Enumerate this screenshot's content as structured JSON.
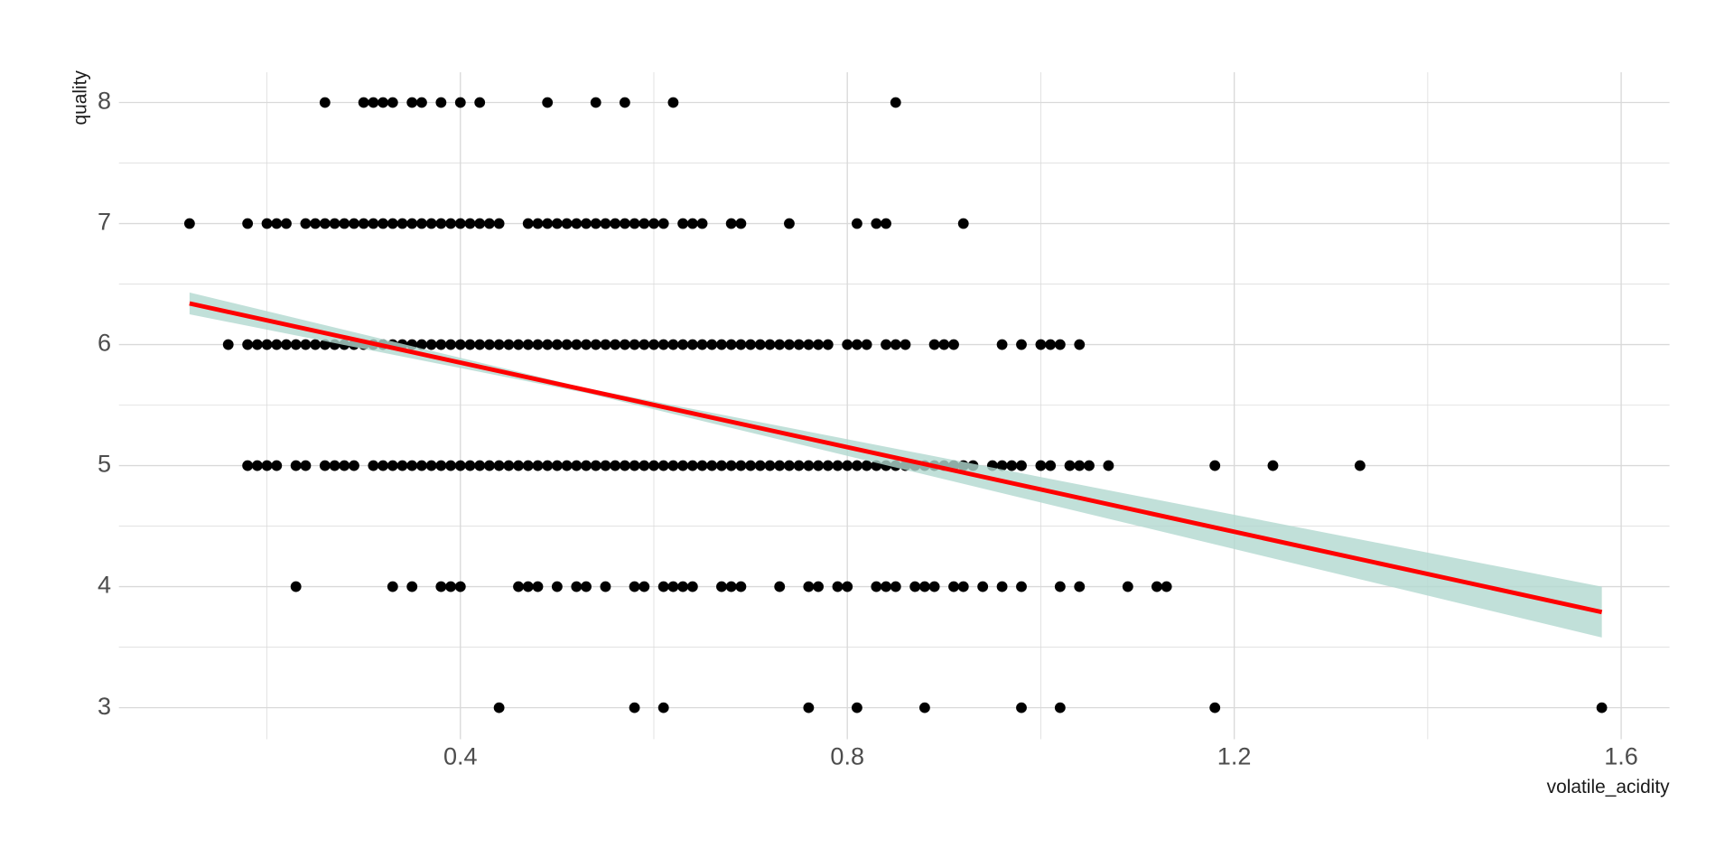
{
  "chart_data": {
    "type": "scatter",
    "x_label": "volatile_acidity",
    "y_label": "quality",
    "xlim": [
      0.047,
      1.65
    ],
    "ylim": [
      2.74,
      8.25
    ],
    "xticks": [
      0.4,
      0.8,
      1.2,
      1.6
    ],
    "yticks": [
      3,
      4,
      5,
      6,
      7,
      8
    ],
    "x_minor_grid": [
      0.2,
      0.6,
      1.0,
      1.4
    ],
    "y_minor_grid": [
      3.5,
      4.5,
      5.5,
      6.5,
      7.5
    ],
    "grid": true,
    "grid_color": "#d9d9d9",
    "point_color": "#000000",
    "points": [
      [
        0.26,
        8
      ],
      [
        0.3,
        8
      ],
      [
        0.31,
        8
      ],
      [
        0.32,
        8
      ],
      [
        0.33,
        8
      ],
      [
        0.35,
        8
      ],
      [
        0.36,
        8
      ],
      [
        0.38,
        8
      ],
      [
        0.4,
        8
      ],
      [
        0.42,
        8
      ],
      [
        0.49,
        8
      ],
      [
        0.54,
        8
      ],
      [
        0.57,
        8
      ],
      [
        0.62,
        8
      ],
      [
        0.85,
        8
      ],
      [
        0.12,
        7
      ],
      [
        0.18,
        7
      ],
      [
        0.2,
        7
      ],
      [
        0.21,
        7
      ],
      [
        0.22,
        7
      ],
      [
        0.24,
        7
      ],
      [
        0.25,
        7
      ],
      [
        0.26,
        7
      ],
      [
        0.27,
        7
      ],
      [
        0.28,
        7
      ],
      [
        0.29,
        7
      ],
      [
        0.3,
        7
      ],
      [
        0.31,
        7
      ],
      [
        0.32,
        7
      ],
      [
        0.33,
        7
      ],
      [
        0.34,
        7
      ],
      [
        0.35,
        7
      ],
      [
        0.36,
        7
      ],
      [
        0.37,
        7
      ],
      [
        0.38,
        7
      ],
      [
        0.39,
        7
      ],
      [
        0.4,
        7
      ],
      [
        0.41,
        7
      ],
      [
        0.42,
        7
      ],
      [
        0.43,
        7
      ],
      [
        0.44,
        7
      ],
      [
        0.47,
        7
      ],
      [
        0.48,
        7
      ],
      [
        0.49,
        7
      ],
      [
        0.5,
        7
      ],
      [
        0.51,
        7
      ],
      [
        0.52,
        7
      ],
      [
        0.53,
        7
      ],
      [
        0.54,
        7
      ],
      [
        0.55,
        7
      ],
      [
        0.56,
        7
      ],
      [
        0.57,
        7
      ],
      [
        0.58,
        7
      ],
      [
        0.59,
        7
      ],
      [
        0.6,
        7
      ],
      [
        0.61,
        7
      ],
      [
        0.63,
        7
      ],
      [
        0.64,
        7
      ],
      [
        0.65,
        7
      ],
      [
        0.68,
        7
      ],
      [
        0.69,
        7
      ],
      [
        0.74,
        7
      ],
      [
        0.81,
        7
      ],
      [
        0.83,
        7
      ],
      [
        0.84,
        7
      ],
      [
        0.92,
        7
      ],
      [
        0.16,
        6
      ],
      [
        0.18,
        6
      ],
      [
        0.19,
        6
      ],
      [
        0.2,
        6
      ],
      [
        0.21,
        6
      ],
      [
        0.22,
        6
      ],
      [
        0.23,
        6
      ],
      [
        0.24,
        6
      ],
      [
        0.25,
        6
      ],
      [
        0.26,
        6
      ],
      [
        0.27,
        6
      ],
      [
        0.28,
        6
      ],
      [
        0.29,
        6
      ],
      [
        0.3,
        6
      ],
      [
        0.31,
        6
      ],
      [
        0.32,
        6
      ],
      [
        0.33,
        6
      ],
      [
        0.34,
        6
      ],
      [
        0.35,
        6
      ],
      [
        0.36,
        6
      ],
      [
        0.37,
        6
      ],
      [
        0.38,
        6
      ],
      [
        0.39,
        6
      ],
      [
        0.4,
        6
      ],
      [
        0.41,
        6
      ],
      [
        0.42,
        6
      ],
      [
        0.43,
        6
      ],
      [
        0.44,
        6
      ],
      [
        0.45,
        6
      ],
      [
        0.46,
        6
      ],
      [
        0.47,
        6
      ],
      [
        0.48,
        6
      ],
      [
        0.49,
        6
      ],
      [
        0.5,
        6
      ],
      [
        0.51,
        6
      ],
      [
        0.52,
        6
      ],
      [
        0.53,
        6
      ],
      [
        0.54,
        6
      ],
      [
        0.55,
        6
      ],
      [
        0.56,
        6
      ],
      [
        0.57,
        6
      ],
      [
        0.58,
        6
      ],
      [
        0.59,
        6
      ],
      [
        0.6,
        6
      ],
      [
        0.61,
        6
      ],
      [
        0.62,
        6
      ],
      [
        0.63,
        6
      ],
      [
        0.64,
        6
      ],
      [
        0.65,
        6
      ],
      [
        0.66,
        6
      ],
      [
        0.67,
        6
      ],
      [
        0.68,
        6
      ],
      [
        0.69,
        6
      ],
      [
        0.7,
        6
      ],
      [
        0.71,
        6
      ],
      [
        0.72,
        6
      ],
      [
        0.73,
        6
      ],
      [
        0.74,
        6
      ],
      [
        0.75,
        6
      ],
      [
        0.76,
        6
      ],
      [
        0.77,
        6
      ],
      [
        0.78,
        6
      ],
      [
        0.8,
        6
      ],
      [
        0.81,
        6
      ],
      [
        0.82,
        6
      ],
      [
        0.84,
        6
      ],
      [
        0.85,
        6
      ],
      [
        0.86,
        6
      ],
      [
        0.89,
        6
      ],
      [
        0.9,
        6
      ],
      [
        0.91,
        6
      ],
      [
        0.96,
        6
      ],
      [
        0.98,
        6
      ],
      [
        1.0,
        6
      ],
      [
        1.01,
        6
      ],
      [
        1.02,
        6
      ],
      [
        1.04,
        6
      ],
      [
        0.18,
        5
      ],
      [
        0.19,
        5
      ],
      [
        0.2,
        5
      ],
      [
        0.21,
        5
      ],
      [
        0.23,
        5
      ],
      [
        0.24,
        5
      ],
      [
        0.26,
        5
      ],
      [
        0.27,
        5
      ],
      [
        0.28,
        5
      ],
      [
        0.29,
        5
      ],
      [
        0.31,
        5
      ],
      [
        0.32,
        5
      ],
      [
        0.33,
        5
      ],
      [
        0.34,
        5
      ],
      [
        0.35,
        5
      ],
      [
        0.36,
        5
      ],
      [
        0.37,
        5
      ],
      [
        0.38,
        5
      ],
      [
        0.39,
        5
      ],
      [
        0.4,
        5
      ],
      [
        0.41,
        5
      ],
      [
        0.42,
        5
      ],
      [
        0.43,
        5
      ],
      [
        0.44,
        5
      ],
      [
        0.45,
        5
      ],
      [
        0.46,
        5
      ],
      [
        0.47,
        5
      ],
      [
        0.48,
        5
      ],
      [
        0.49,
        5
      ],
      [
        0.5,
        5
      ],
      [
        0.51,
        5
      ],
      [
        0.52,
        5
      ],
      [
        0.53,
        5
      ],
      [
        0.54,
        5
      ],
      [
        0.55,
        5
      ],
      [
        0.56,
        5
      ],
      [
        0.57,
        5
      ],
      [
        0.58,
        5
      ],
      [
        0.59,
        5
      ],
      [
        0.6,
        5
      ],
      [
        0.61,
        5
      ],
      [
        0.62,
        5
      ],
      [
        0.63,
        5
      ],
      [
        0.64,
        5
      ],
      [
        0.65,
        5
      ],
      [
        0.66,
        5
      ],
      [
        0.67,
        5
      ],
      [
        0.68,
        5
      ],
      [
        0.69,
        5
      ],
      [
        0.7,
        5
      ],
      [
        0.71,
        5
      ],
      [
        0.72,
        5
      ],
      [
        0.73,
        5
      ],
      [
        0.74,
        5
      ],
      [
        0.75,
        5
      ],
      [
        0.76,
        5
      ],
      [
        0.77,
        5
      ],
      [
        0.78,
        5
      ],
      [
        0.79,
        5
      ],
      [
        0.8,
        5
      ],
      [
        0.81,
        5
      ],
      [
        0.82,
        5
      ],
      [
        0.83,
        5
      ],
      [
        0.84,
        5
      ],
      [
        0.85,
        5
      ],
      [
        0.86,
        5
      ],
      [
        0.87,
        5
      ],
      [
        0.88,
        5
      ],
      [
        0.89,
        5
      ],
      [
        0.9,
        5
      ],
      [
        0.91,
        5
      ],
      [
        0.92,
        5
      ],
      [
        0.93,
        5
      ],
      [
        0.95,
        5
      ],
      [
        0.96,
        5
      ],
      [
        0.97,
        5
      ],
      [
        0.98,
        5
      ],
      [
        1.0,
        5
      ],
      [
        1.01,
        5
      ],
      [
        1.03,
        5
      ],
      [
        1.04,
        5
      ],
      [
        1.05,
        5
      ],
      [
        1.07,
        5
      ],
      [
        1.18,
        5
      ],
      [
        1.24,
        5
      ],
      [
        1.33,
        5
      ],
      [
        0.23,
        4
      ],
      [
        0.33,
        4
      ],
      [
        0.35,
        4
      ],
      [
        0.38,
        4
      ],
      [
        0.39,
        4
      ],
      [
        0.4,
        4
      ],
      [
        0.46,
        4
      ],
      [
        0.47,
        4
      ],
      [
        0.48,
        4
      ],
      [
        0.5,
        4
      ],
      [
        0.52,
        4
      ],
      [
        0.53,
        4
      ],
      [
        0.55,
        4
      ],
      [
        0.58,
        4
      ],
      [
        0.59,
        4
      ],
      [
        0.61,
        4
      ],
      [
        0.62,
        4
      ],
      [
        0.63,
        4
      ],
      [
        0.64,
        4
      ],
      [
        0.67,
        4
      ],
      [
        0.68,
        4
      ],
      [
        0.69,
        4
      ],
      [
        0.73,
        4
      ],
      [
        0.76,
        4
      ],
      [
        0.77,
        4
      ],
      [
        0.79,
        4
      ],
      [
        0.8,
        4
      ],
      [
        0.83,
        4
      ],
      [
        0.84,
        4
      ],
      [
        0.85,
        4
      ],
      [
        0.87,
        4
      ],
      [
        0.88,
        4
      ],
      [
        0.89,
        4
      ],
      [
        0.91,
        4
      ],
      [
        0.92,
        4
      ],
      [
        0.94,
        4
      ],
      [
        0.96,
        4
      ],
      [
        0.98,
        4
      ],
      [
        1.02,
        4
      ],
      [
        1.04,
        4
      ],
      [
        1.09,
        4
      ],
      [
        1.12,
        4
      ],
      [
        1.13,
        4
      ],
      [
        0.44,
        3
      ],
      [
        0.58,
        3
      ],
      [
        0.61,
        3
      ],
      [
        0.76,
        3
      ],
      [
        0.81,
        3
      ],
      [
        0.88,
        3
      ],
      [
        0.98,
        3
      ],
      [
        1.02,
        3
      ],
      [
        1.18,
        3
      ],
      [
        1.58,
        3
      ]
    ],
    "band": {
      "x": [
        0.12,
        0.53,
        1.58
      ],
      "lower": [
        6.25,
        5.6,
        3.58
      ],
      "upper": [
        6.43,
        5.64,
        4.0
      ],
      "color": "#b2d8cf"
    },
    "fit": {
      "x": [
        0.12,
        1.58
      ],
      "values": [
        6.34,
        3.79
      ],
      "color": "#ff0000"
    }
  }
}
